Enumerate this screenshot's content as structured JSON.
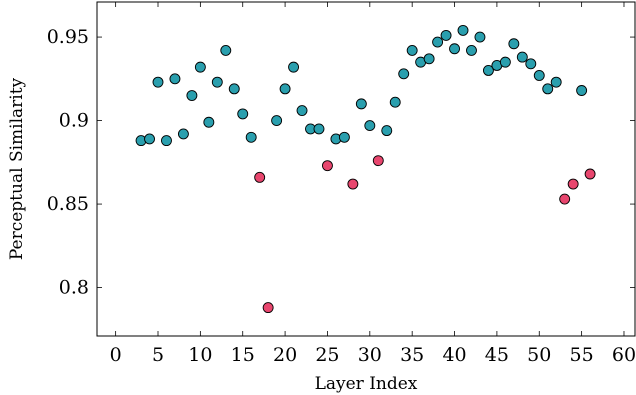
{
  "chart_data": {
    "type": "scatter",
    "xlabel": "Layer Index",
    "ylabel": "Perceptual Similarity",
    "xlim": [
      -2.2,
      61.3
    ],
    "ylim": [
      0.771,
      0.971
    ],
    "xticks": [
      0,
      5,
      10,
      15,
      20,
      25,
      30,
      35,
      40,
      45,
      50,
      55,
      60
    ],
    "xtick_labels": [
      "0",
      "5",
      "10",
      "15",
      "20",
      "25",
      "30",
      "35",
      "40",
      "45",
      "50",
      "55",
      "60"
    ],
    "yticks": [
      0.8,
      0.85,
      0.9,
      0.95
    ],
    "ytick_labels": [
      "0.8",
      "0.85",
      "0.9",
      "0.95"
    ],
    "grid": false,
    "legend": "none",
    "colors": {
      "teal": "#2a9fae",
      "pink": "#e8466e",
      "edge": "#000000"
    },
    "series": [
      {
        "color": "teal",
        "x": [
          3,
          4,
          5,
          6,
          7,
          8,
          9,
          10,
          11,
          12,
          13,
          14,
          15,
          16,
          19,
          20,
          21,
          22,
          23,
          24,
          26,
          27,
          29,
          30,
          32,
          33,
          34,
          35,
          36,
          37,
          38,
          39,
          40,
          41,
          42,
          43,
          44,
          45,
          46,
          47,
          48,
          49,
          50,
          51,
          52,
          55
        ],
        "y": [
          0.888,
          0.889,
          0.923,
          0.888,
          0.925,
          0.892,
          0.915,
          0.932,
          0.899,
          0.923,
          0.942,
          0.919,
          0.904,
          0.89,
          0.9,
          0.919,
          0.932,
          0.906,
          0.895,
          0.895,
          0.889,
          0.89,
          0.91,
          0.897,
          0.894,
          0.911,
          0.928,
          0.942,
          0.935,
          0.937,
          0.947,
          0.951,
          0.943,
          0.954,
          0.942,
          0.95,
          0.93,
          0.933,
          0.935,
          0.946,
          0.938,
          0.934,
          0.927,
          0.919,
          0.923,
          0.918
        ]
      },
      {
        "color": "pink",
        "x": [
          17,
          18,
          25,
          28,
          31,
          53,
          54,
          56
        ],
        "y": [
          0.866,
          0.788,
          0.873,
          0.862,
          0.876,
          0.853,
          0.862,
          0.868
        ]
      }
    ]
  }
}
